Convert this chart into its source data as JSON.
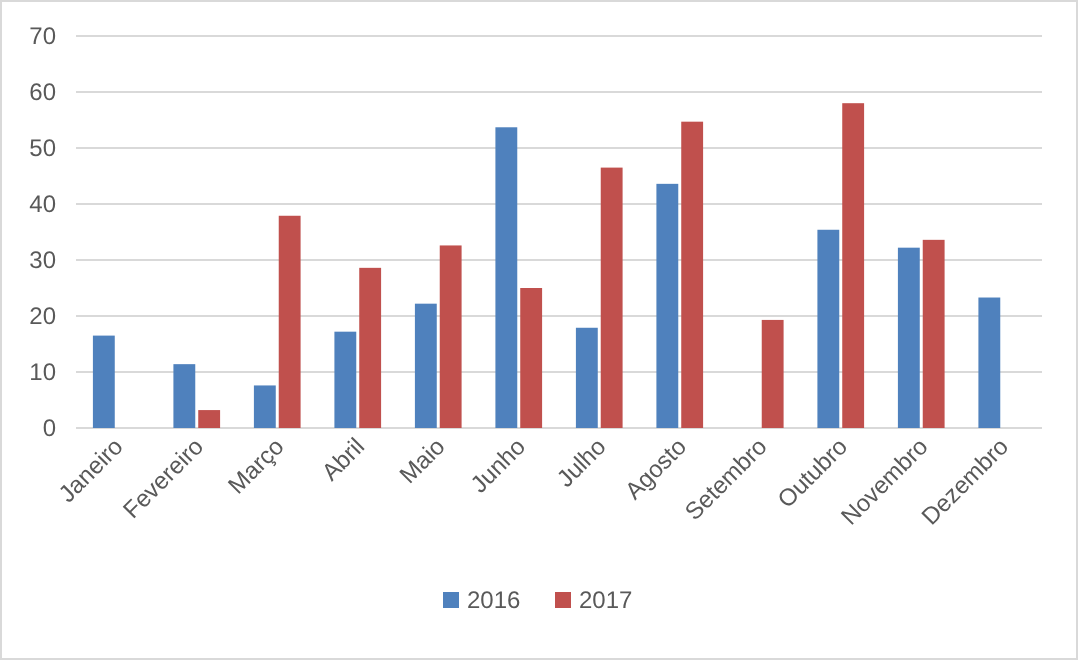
{
  "chart_data": {
    "type": "bar",
    "categories": [
      "Janeiro",
      "Fevereiro",
      "Março",
      "Abril",
      "Maio",
      "Junho",
      "Julho",
      "Agosto",
      "Setembro",
      "Outubro",
      "Novembro",
      "Dezembro"
    ],
    "series": [
      {
        "name": "2016",
        "color": "#4f81bd",
        "values": [
          16.5,
          11.4,
          7.6,
          17.2,
          22.2,
          53.7,
          17.9,
          43.6,
          null,
          35.4,
          32.2,
          23.3
        ]
      },
      {
        "name": "2017",
        "color": "#c0504d",
        "values": [
          null,
          3.2,
          37.9,
          28.6,
          32.6,
          25.0,
          46.5,
          54.7,
          19.3,
          58.0,
          33.6,
          null
        ]
      }
    ],
    "ylim": [
      0,
      70
    ],
    "yticks": [
      0,
      10,
      20,
      30,
      40,
      50,
      60,
      70
    ],
    "grid": "y",
    "legend": "bottom"
  }
}
